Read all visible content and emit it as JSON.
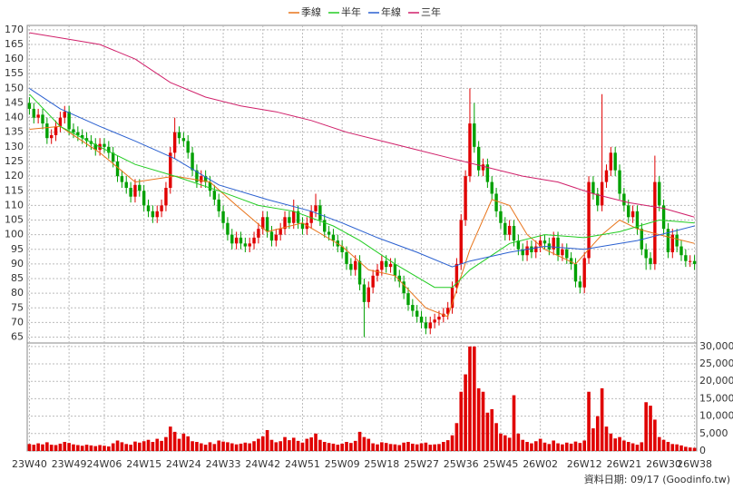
{
  "chart_data": {
    "type": "candlestick",
    "categories": [
      "23W40",
      null,
      null,
      null,
      null,
      null,
      null,
      null,
      null,
      "23W49",
      null,
      null,
      null,
      null,
      null,
      null,
      null,
      "24W06",
      null,
      null,
      null,
      null,
      null,
      null,
      null,
      null,
      "24W15",
      null,
      null,
      null,
      null,
      null,
      null,
      null,
      null,
      "24W24",
      null,
      null,
      null,
      null,
      null,
      null,
      null,
      null,
      "24W33",
      null,
      null,
      null,
      null,
      null,
      null,
      null,
      null,
      "24W42",
      null,
      null,
      null,
      null,
      null,
      null,
      null,
      null,
      "24W51",
      null,
      null,
      null,
      null,
      null,
      null,
      null,
      null,
      "25W09",
      null,
      null,
      null,
      null,
      null,
      null,
      null,
      null,
      "25W18",
      null,
      null,
      null,
      null,
      null,
      null,
      null,
      null,
      "25W27",
      null,
      null,
      null,
      null,
      null,
      null,
      null,
      null,
      "25W36",
      null,
      null,
      null,
      null,
      null,
      null,
      null,
      null,
      "25W45",
      null,
      null,
      null,
      null,
      null,
      null,
      null,
      null,
      "26W02",
      null,
      null,
      null,
      null,
      null,
      null,
      null,
      null,
      null,
      "26W12",
      null,
      null,
      null,
      null,
      null,
      null,
      null,
      null,
      "26W21",
      null,
      null,
      null,
      null,
      null,
      null,
      null,
      null,
      "26W30",
      null,
      null,
      null,
      null,
      null,
      null,
      "26W38"
    ],
    "open": [
      145,
      143,
      140,
      141,
      138,
      133,
      134,
      137,
      140,
      142,
      136,
      135,
      134,
      133,
      132,
      131,
      129,
      131,
      130,
      128,
      125,
      120,
      118,
      116,
      113,
      117,
      115,
      110,
      108,
      106,
      108,
      110,
      116,
      128,
      135,
      133,
      132,
      128,
      122,
      118,
      120,
      118,
      115,
      112,
      108,
      104,
      100,
      97,
      99,
      97,
      96,
      97,
      99,
      102,
      106,
      101,
      98,
      100,
      102,
      106,
      104,
      108,
      104,
      102,
      104,
      108,
      110,
      105,
      101,
      100,
      98,
      96,
      94,
      90,
      88,
      91,
      83,
      77,
      82,
      86,
      88,
      91,
      89,
      90,
      86,
      84,
      80,
      76,
      74,
      72,
      70,
      68,
      70,
      71,
      72,
      73,
      75,
      82,
      90,
      105,
      120,
      138,
      130,
      122,
      124,
      118,
      114,
      108,
      104,
      100,
      103,
      98,
      95,
      93,
      96,
      94,
      96,
      98,
      97,
      95,
      99,
      93,
      95,
      92,
      90,
      84,
      82,
      92,
      118,
      114,
      110,
      118,
      122,
      128,
      122,
      114,
      110,
      106,
      108,
      102,
      95,
      92,
      90,
      118,
      110,
      102,
      94,
      100,
      96,
      93,
      91,
      91
    ],
    "high": [
      147,
      145,
      143,
      143,
      140,
      136,
      139,
      142,
      144,
      144,
      138,
      137,
      136,
      135,
      134,
      133,
      133,
      133,
      132,
      130,
      127,
      122,
      120,
      118,
      119,
      119,
      117,
      112,
      110,
      110,
      112,
      118,
      130,
      140,
      137,
      135,
      134,
      130,
      124,
      122,
      122,
      120,
      117,
      114,
      110,
      106,
      102,
      101,
      101,
      99,
      99,
      101,
      104,
      108,
      108,
      103,
      102,
      104,
      108,
      108,
      112,
      110,
      106,
      106,
      110,
      114,
      112,
      107,
      103,
      102,
      100,
      98,
      96,
      92,
      93,
      93,
      85,
      84,
      88,
      90,
      93,
      93,
      92,
      92,
      88,
      86,
      82,
      78,
      76,
      74,
      72,
      72,
      73,
      74,
      75,
      77,
      84,
      92,
      107,
      122,
      150,
      145,
      132,
      126,
      126,
      120,
      116,
      110,
      106,
      105,
      105,
      100,
      97,
      98,
      98,
      98,
      100,
      100,
      99,
      101,
      101,
      97,
      97,
      94,
      92,
      86,
      94,
      120,
      120,
      116,
      148,
      124,
      130,
      130,
      124,
      116,
      112,
      110,
      110,
      104,
      97,
      94,
      127,
      120,
      112,
      104,
      102,
      102,
      98,
      95,
      93,
      93
    ],
    "low": [
      141,
      138,
      138,
      136,
      131,
      131,
      132,
      135,
      138,
      134,
      133,
      132,
      131,
      130,
      129,
      127,
      127,
      128,
      126,
      123,
      118,
      116,
      114,
      111,
      111,
      113,
      108,
      106,
      104,
      104,
      106,
      108,
      114,
      126,
      131,
      130,
      126,
      120,
      116,
      116,
      116,
      113,
      110,
      106,
      102,
      98,
      95,
      95,
      95,
      94,
      94,
      95,
      97,
      100,
      99,
      96,
      96,
      98,
      100,
      102,
      102,
      102,
      100,
      100,
      102,
      106,
      103,
      99,
      98,
      96,
      94,
      92,
      88,
      86,
      86,
      81,
      65,
      75,
      80,
      84,
      86,
      87,
      87,
      84,
      82,
      78,
      74,
      72,
      70,
      68,
      66,
      66,
      68,
      69,
      70,
      71,
      73,
      80,
      88,
      103,
      118,
      128,
      120,
      120,
      116,
      112,
      106,
      102,
      98,
      98,
      96,
      93,
      91,
      91,
      92,
      92,
      94,
      95,
      93,
      93,
      91,
      91,
      90,
      88,
      82,
      80,
      80,
      90,
      112,
      108,
      108,
      116,
      120,
      120,
      112,
      108,
      104,
      104,
      100,
      93,
      88,
      88,
      88,
      108,
      100,
      92,
      92,
      94,
      91,
      89,
      89,
      88
    ],
    "close": [
      143,
      140,
      141,
      138,
      133,
      134,
      137,
      140,
      142,
      136,
      135,
      134,
      133,
      132,
      131,
      129,
      131,
      130,
      128,
      125,
      120,
      118,
      116,
      113,
      117,
      115,
      110,
      108,
      106,
      108,
      110,
      116,
      128,
      135,
      133,
      132,
      128,
      122,
      118,
      120,
      118,
      115,
      112,
      108,
      104,
      100,
      97,
      99,
      97,
      96,
      97,
      99,
      102,
      106,
      101,
      98,
      100,
      102,
      106,
      104,
      108,
      104,
      102,
      104,
      108,
      110,
      105,
      101,
      100,
      98,
      96,
      94,
      90,
      88,
      91,
      83,
      77,
      82,
      86,
      88,
      91,
      89,
      90,
      86,
      84,
      80,
      76,
      74,
      72,
      70,
      68,
      70,
      71,
      72,
      73,
      75,
      82,
      90,
      105,
      120,
      138,
      130,
      122,
      124,
      118,
      114,
      108,
      104,
      100,
      103,
      98,
      95,
      93,
      96,
      94,
      96,
      98,
      97,
      95,
      99,
      93,
      95,
      92,
      90,
      84,
      82,
      92,
      118,
      114,
      110,
      118,
      122,
      128,
      122,
      114,
      110,
      106,
      108,
      102,
      95,
      92,
      90,
      118,
      110,
      102,
      94,
      100,
      96,
      93,
      91,
      91,
      90
    ],
    "up_color": "#e00000",
    "down_color": "#00a000",
    "ylim": [
      63,
      171.5
    ],
    "yticks": [
      65,
      70,
      75,
      80,
      85,
      90,
      95,
      100,
      105,
      110,
      115,
      120,
      125,
      130,
      135,
      140,
      145,
      150,
      155,
      160,
      165,
      170
    ],
    "grid": true,
    "series": [
      {
        "name": "季線",
        "color": "#e8741a",
        "x": [
          0,
          7,
          16,
          24,
          33,
          41,
          47,
          54,
          62,
          71,
          77,
          83,
          90,
          95,
          100,
          105,
          109,
          113,
          117,
          124,
          130,
          134,
          138,
          143,
          151
        ],
        "values": [
          136,
          137,
          128,
          118,
          120,
          118,
          110,
          101,
          104,
          96,
          88,
          86,
          75,
          72,
          95,
          112,
          110,
          100,
          95,
          90,
          100,
          105,
          102,
          100,
          97
        ]
      },
      {
        "name": "半年",
        "color": "#22cc22",
        "x": [
          0,
          7,
          16,
          24,
          33,
          43,
          52,
          60,
          69,
          75,
          83,
          92,
          96,
          100,
          109,
          117,
          126,
          134,
          143,
          151
        ],
        "values": [
          148,
          137,
          130,
          124,
          120,
          115,
          110,
          108,
          103,
          98,
          90,
          82,
          82,
          88,
          97,
          100,
          99,
          101,
          105,
          104
        ]
      },
      {
        "name": "年線",
        "color": "#2a60d0",
        "x": [
          0,
          7,
          16,
          24,
          33,
          43,
          54,
          64,
          71,
          79,
          88,
          96,
          100,
          109,
          117,
          126,
          138,
          151
        ],
        "values": [
          150,
          143,
          137,
          132,
          126,
          117,
          112,
          108,
          104,
          99,
          94,
          89,
          91,
          94,
          96,
          95,
          98,
          103
        ]
      },
      {
        "name": "三年",
        "color": "#d0206a",
        "x": [
          0,
          8,
          16,
          24,
          32,
          40,
          48,
          56,
          64,
          72,
          80,
          88,
          96,
          104,
          112,
          120,
          128,
          136,
          144,
          151
        ],
        "values": [
          169,
          167,
          165,
          160,
          152,
          147,
          144,
          142,
          139,
          135,
          132,
          129,
          126,
          123,
          120,
          118,
          114,
          111,
          109,
          106
        ]
      }
    ],
    "volume": {
      "color": "#e00000",
      "values": [
        2000,
        1800,
        2200,
        1900,
        2500,
        1800,
        1700,
        2100,
        2600,
        2300,
        1900,
        1700,
        1500,
        1800,
        1600,
        1400,
        1700,
        1500,
        1300,
        2200,
        3000,
        2500,
        2000,
        1800,
        2700,
        2400,
        2800,
        3200,
        2600,
        3500,
        2900,
        4000,
        7000,
        5500,
        3500,
        5000,
        4200,
        2800,
        2600,
        2200,
        1800,
        2500,
        2000,
        3000,
        2700,
        2500,
        2200,
        1900,
        2100,
        2400,
        2200,
        2800,
        3500,
        4200,
        6000,
        3200,
        2500,
        2800,
        4000,
        3100,
        3800,
        2900,
        2400,
        3500,
        3900,
        5000,
        3200,
        2600,
        2300,
        2100,
        1800,
        2100,
        2600,
        2300,
        2900,
        5500,
        4000,
        3500,
        2200,
        1900,
        2500,
        2300,
        2000,
        1900,
        1700,
        2400,
        2600,
        2100,
        1900,
        2200,
        2400,
        1800,
        1900,
        2000,
        2600,
        3100,
        4500,
        8000,
        17000,
        22000,
        30000,
        30000,
        18000,
        17000,
        11000,
        12000,
        8000,
        5000,
        4500,
        3800,
        16000,
        5000,
        3200,
        2600,
        2200,
        2800,
        3500,
        2400,
        2000,
        3000,
        2200,
        1900,
        2400,
        2100,
        2700,
        2300,
        3000,
        17000,
        6500,
        10000,
        18000,
        7000,
        5000,
        3600,
        4000,
        3000,
        2600,
        2200,
        1800,
        2500,
        14000,
        13000,
        9000,
        4000,
        3200,
        2600,
        2000,
        1900,
        1600,
        1200,
        1000,
        900
      ],
      "ylim": [
        0,
        31000
      ],
      "yticks": [
        0,
        {
          "value": 5000,
          "label": "5,000"
        },
        {
          "value": 10000,
          "label": "10,000"
        },
        {
          "value": 15000,
          "label": "15,000"
        },
        {
          "value": 20000,
          "label": "20,000"
        },
        {
          "value": 25000,
          "label": "25,000"
        },
        {
          "value": 30000,
          "label": "30,000"
        }
      ]
    },
    "source_note": "資料日期: 09/17 (Goodinfo.tw)"
  }
}
